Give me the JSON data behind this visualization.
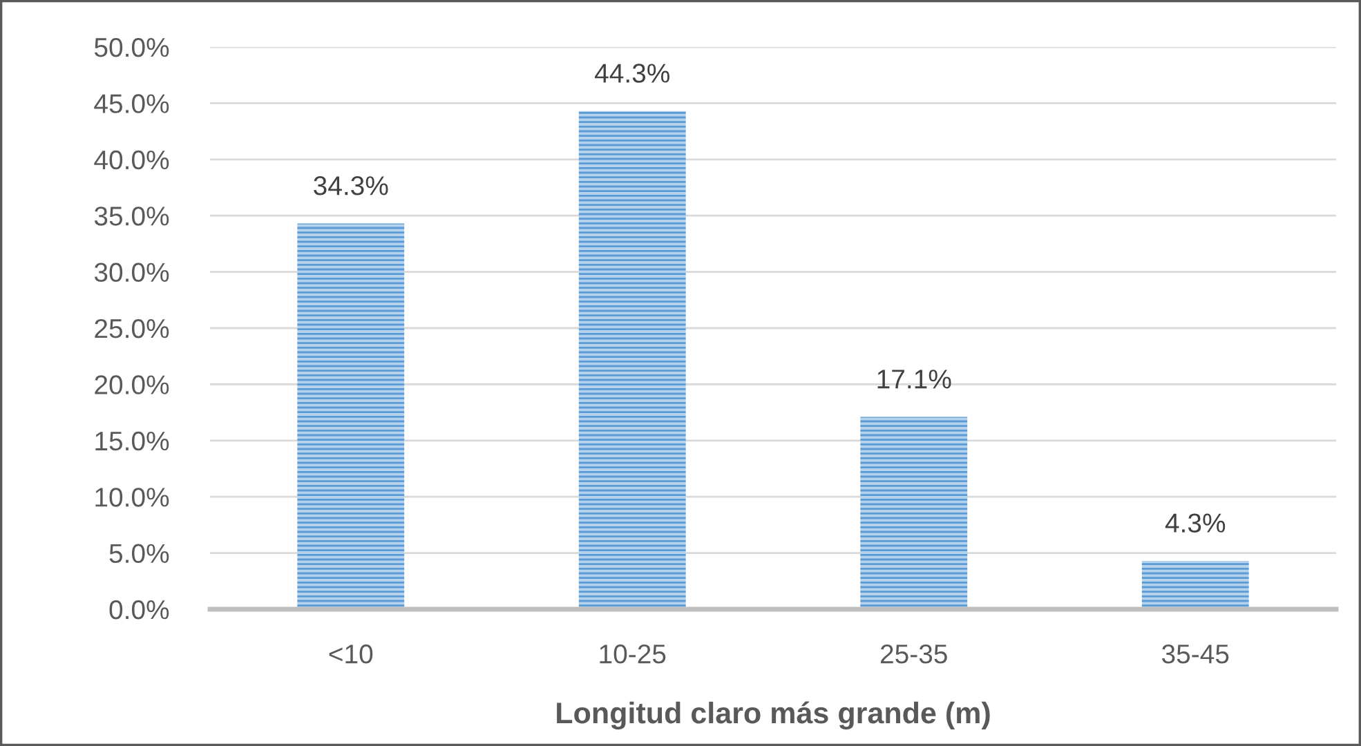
{
  "chart_data": {
    "type": "bar",
    "xlabel": "Longitud claro más grande (m)",
    "categories": [
      "<10",
      "10-25",
      "25-35",
      "35-45"
    ],
    "values": [
      34.3,
      44.3,
      17.1,
      4.3
    ],
    "color": "#5b9bd5",
    "value_labels": [
      "34.3%",
      "44.3%",
      "17.1%",
      "4.3%"
    ],
    "ylim": [
      0,
      50
    ],
    "yticks": [
      {
        "value": 0,
        "label": "0.0%"
      },
      {
        "value": 5,
        "label": "5.0%"
      },
      {
        "value": 10,
        "label": "10.0%"
      },
      {
        "value": 15,
        "label": "15.0%"
      },
      {
        "value": 20,
        "label": "20.0%"
      },
      {
        "value": 25,
        "label": "25.0%"
      },
      {
        "value": 30,
        "label": "30.0%"
      },
      {
        "value": 35,
        "label": "35.0%"
      },
      {
        "value": 40,
        "label": "40.0%"
      },
      {
        "value": 45,
        "label": "45.0%"
      },
      {
        "value": 50,
        "label": "50.0%"
      }
    ],
    "grid": "y"
  }
}
